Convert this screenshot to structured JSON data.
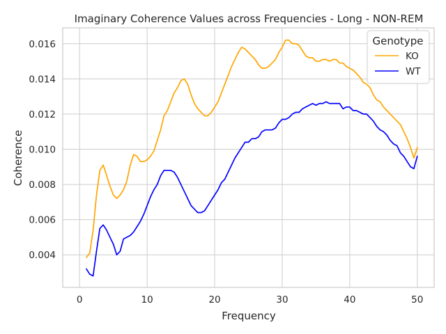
{
  "chart_data": {
    "type": "line",
    "title": "Imaginary Coherence Values across Frequencies - Long - NON-REM",
    "xlabel": "Frequency",
    "ylabel": "Coherence",
    "xlim": [
      -2.5,
      52.5
    ],
    "ylim": [
      0.00215,
      0.0169
    ],
    "xticks": [
      0,
      10,
      20,
      30,
      40,
      50
    ],
    "xtick_labels": [
      "0",
      "10",
      "20",
      "30",
      "40",
      "50"
    ],
    "yticks": [
      0.004,
      0.006,
      0.008,
      0.01,
      0.012,
      0.014,
      0.016
    ],
    "ytick_labels": [
      "0.004",
      "0.006",
      "0.008",
      "0.010",
      "0.012",
      "0.014",
      "0.016"
    ],
    "grid": true,
    "legend": {
      "title": "Genotype",
      "placement": "top-right"
    },
    "series": [
      {
        "name": "KO",
        "color": "#ffa500",
        "points": [
          [
            1.0,
            0.00385
          ],
          [
            1.5,
            0.0041
          ],
          [
            2.0,
            0.0054
          ],
          [
            2.5,
            0.0074
          ],
          [
            3.0,
            0.0088
          ],
          [
            3.5,
            0.0091
          ],
          [
            4.0,
            0.0085
          ],
          [
            4.5,
            0.0079
          ],
          [
            5.0,
            0.0074
          ],
          [
            5.5,
            0.0072
          ],
          [
            6.0,
            0.0074
          ],
          [
            6.5,
            0.0077
          ],
          [
            7.0,
            0.0082
          ],
          [
            7.5,
            0.0091
          ],
          [
            8.0,
            0.0097
          ],
          [
            8.5,
            0.0096
          ],
          [
            9.0,
            0.0093
          ],
          [
            9.5,
            0.0093
          ],
          [
            10.0,
            0.0094
          ],
          [
            10.5,
            0.0096
          ],
          [
            11.0,
            0.0099
          ],
          [
            11.5,
            0.0105
          ],
          [
            12.0,
            0.0111
          ],
          [
            12.5,
            0.0119
          ],
          [
            13.0,
            0.0122
          ],
          [
            13.5,
            0.0127
          ],
          [
            14.0,
            0.0132
          ],
          [
            14.5,
            0.0135
          ],
          [
            15.0,
            0.0139
          ],
          [
            15.5,
            0.014
          ],
          [
            16.0,
            0.0137
          ],
          [
            16.5,
            0.0131
          ],
          [
            17.0,
            0.0126
          ],
          [
            17.5,
            0.0123
          ],
          [
            18.0,
            0.0121
          ],
          [
            18.5,
            0.0119
          ],
          [
            19.0,
            0.0119
          ],
          [
            19.5,
            0.0121
          ],
          [
            20.0,
            0.0124
          ],
          [
            20.5,
            0.0127
          ],
          [
            21.0,
            0.0132
          ],
          [
            21.5,
            0.0137
          ],
          [
            22.0,
            0.0142
          ],
          [
            22.5,
            0.0147
          ],
          [
            23.0,
            0.0151
          ],
          [
            23.5,
            0.0155
          ],
          [
            24.0,
            0.0158
          ],
          [
            24.5,
            0.0157
          ],
          [
            25.0,
            0.0155
          ],
          [
            25.5,
            0.0153
          ],
          [
            26.0,
            0.0151
          ],
          [
            26.5,
            0.0148
          ],
          [
            27.0,
            0.0146
          ],
          [
            27.5,
            0.0146
          ],
          [
            28.0,
            0.0147
          ],
          [
            28.5,
            0.0149
          ],
          [
            29.0,
            0.0151
          ],
          [
            29.5,
            0.0155
          ],
          [
            30.0,
            0.0158
          ],
          [
            30.5,
            0.0162
          ],
          [
            31.0,
            0.0162
          ],
          [
            31.5,
            0.016
          ],
          [
            32.0,
            0.016
          ],
          [
            32.5,
            0.0159
          ],
          [
            33.0,
            0.0156
          ],
          [
            33.5,
            0.0153
          ],
          [
            34.0,
            0.0152
          ],
          [
            34.5,
            0.0152
          ],
          [
            35.0,
            0.015
          ],
          [
            35.5,
            0.015
          ],
          [
            36.0,
            0.0151
          ],
          [
            36.5,
            0.0151
          ],
          [
            37.0,
            0.015
          ],
          [
            37.5,
            0.0151
          ],
          [
            38.0,
            0.0151
          ],
          [
            38.5,
            0.0149
          ],
          [
            39.0,
            0.0149
          ],
          [
            39.5,
            0.0147
          ],
          [
            40.0,
            0.0146
          ],
          [
            40.5,
            0.0145
          ],
          [
            41.0,
            0.0143
          ],
          [
            41.5,
            0.0141
          ],
          [
            42.0,
            0.0138
          ],
          [
            42.5,
            0.0137
          ],
          [
            43.0,
            0.0135
          ],
          [
            43.5,
            0.0131
          ],
          [
            44.0,
            0.0128
          ],
          [
            44.5,
            0.0127
          ],
          [
            45.0,
            0.0124
          ],
          [
            45.5,
            0.0122
          ],
          [
            46.0,
            0.012
          ],
          [
            46.5,
            0.0118
          ],
          [
            47.0,
            0.0116
          ],
          [
            47.5,
            0.0114
          ],
          [
            48.0,
            0.011
          ],
          [
            48.5,
            0.0106
          ],
          [
            49.0,
            0.0101
          ],
          [
            49.5,
            0.0095
          ],
          [
            50.0,
            0.0101
          ]
        ]
      },
      {
        "name": "WT",
        "color": "#0000ff",
        "points": [
          [
            1.0,
            0.0032
          ],
          [
            1.5,
            0.0029
          ],
          [
            2.0,
            0.0028
          ],
          [
            2.5,
            0.0042
          ],
          [
            3.0,
            0.0055
          ],
          [
            3.5,
            0.0057
          ],
          [
            4.0,
            0.0054
          ],
          [
            4.5,
            0.005
          ],
          [
            5.0,
            0.0046
          ],
          [
            5.5,
            0.004
          ],
          [
            6.0,
            0.0042
          ],
          [
            6.5,
            0.0049
          ],
          [
            7.0,
            0.005
          ],
          [
            7.5,
            0.0051
          ],
          [
            8.0,
            0.0053
          ],
          [
            8.5,
            0.0056
          ],
          [
            9.0,
            0.0059
          ],
          [
            9.5,
            0.0063
          ],
          [
            10.0,
            0.0068
          ],
          [
            10.5,
            0.0073
          ],
          [
            11.0,
            0.0077
          ],
          [
            11.5,
            0.008
          ],
          [
            12.0,
            0.0085
          ],
          [
            12.5,
            0.0088
          ],
          [
            13.0,
            0.0088
          ],
          [
            13.5,
            0.0088
          ],
          [
            14.0,
            0.0087
          ],
          [
            14.5,
            0.0084
          ],
          [
            15.0,
            0.008
          ],
          [
            15.5,
            0.0076
          ],
          [
            16.0,
            0.0072
          ],
          [
            16.5,
            0.0068
          ],
          [
            17.0,
            0.0066
          ],
          [
            17.5,
            0.0064
          ],
          [
            18.0,
            0.0064
          ],
          [
            18.5,
            0.0065
          ],
          [
            19.0,
            0.0068
          ],
          [
            19.5,
            0.0071
          ],
          [
            20.0,
            0.0074
          ],
          [
            20.5,
            0.0077
          ],
          [
            21.0,
            0.0081
          ],
          [
            21.5,
            0.0083
          ],
          [
            22.0,
            0.0087
          ],
          [
            22.5,
            0.0091
          ],
          [
            23.0,
            0.0095
          ],
          [
            23.5,
            0.0098
          ],
          [
            24.0,
            0.0101
          ],
          [
            24.5,
            0.0104
          ],
          [
            25.0,
            0.0104
          ],
          [
            25.5,
            0.0106
          ],
          [
            26.0,
            0.0106
          ],
          [
            26.5,
            0.0107
          ],
          [
            27.0,
            0.011
          ],
          [
            27.5,
            0.0111
          ],
          [
            28.0,
            0.0111
          ],
          [
            28.5,
            0.0111
          ],
          [
            29.0,
            0.0112
          ],
          [
            29.5,
            0.0115
          ],
          [
            30.0,
            0.0117
          ],
          [
            30.5,
            0.0117
          ],
          [
            31.0,
            0.0118
          ],
          [
            31.5,
            0.012
          ],
          [
            32.0,
            0.0121
          ],
          [
            32.5,
            0.0121
          ],
          [
            33.0,
            0.0123
          ],
          [
            33.5,
            0.0124
          ],
          [
            34.0,
            0.0125
          ],
          [
            34.5,
            0.0126
          ],
          [
            35.0,
            0.0125
          ],
          [
            35.5,
            0.0126
          ],
          [
            36.0,
            0.0126
          ],
          [
            36.5,
            0.0127
          ],
          [
            37.0,
            0.0126
          ],
          [
            37.5,
            0.0126
          ],
          [
            38.0,
            0.0126
          ],
          [
            38.5,
            0.0126
          ],
          [
            39.0,
            0.0123
          ],
          [
            39.5,
            0.0124
          ],
          [
            40.0,
            0.0124
          ],
          [
            40.5,
            0.0122
          ],
          [
            41.0,
            0.0122
          ],
          [
            41.5,
            0.0121
          ],
          [
            42.0,
            0.012
          ],
          [
            42.5,
            0.012
          ],
          [
            43.0,
            0.0118
          ],
          [
            43.5,
            0.0116
          ],
          [
            44.0,
            0.0113
          ],
          [
            44.5,
            0.0111
          ],
          [
            45.0,
            0.011
          ],
          [
            45.5,
            0.0108
          ],
          [
            46.0,
            0.0105
          ],
          [
            46.5,
            0.0103
          ],
          [
            47.0,
            0.0102
          ],
          [
            47.5,
            0.0098
          ],
          [
            48.0,
            0.0096
          ],
          [
            48.5,
            0.0093
          ],
          [
            49.0,
            0.009
          ],
          [
            49.5,
            0.0089
          ],
          [
            50.0,
            0.0096
          ]
        ]
      }
    ]
  }
}
